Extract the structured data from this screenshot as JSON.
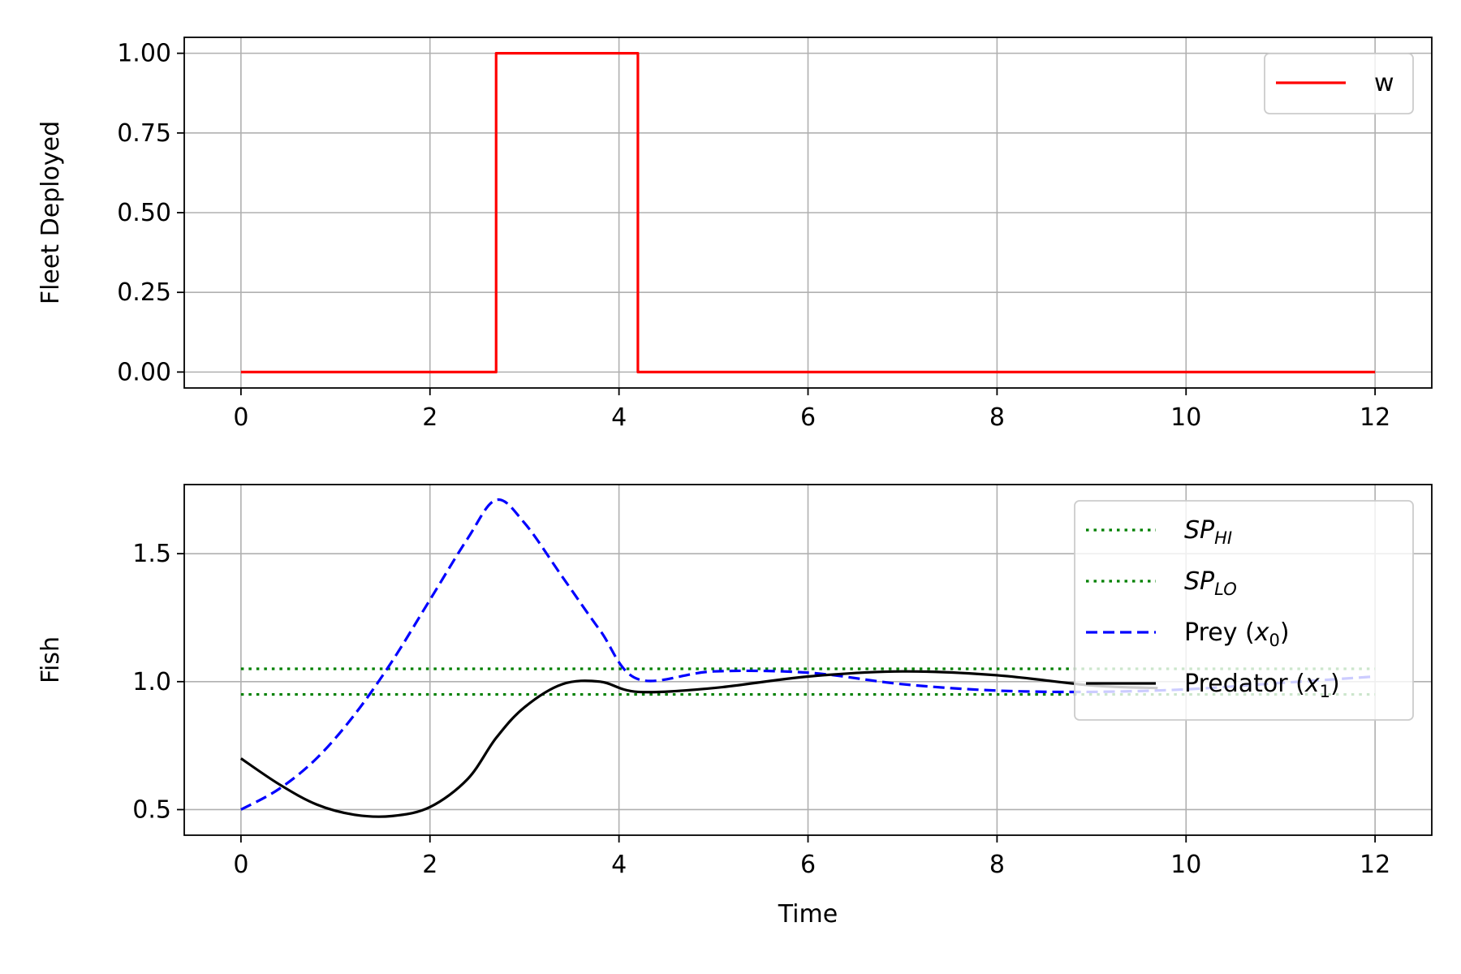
{
  "colors": {
    "w": "#ff0000",
    "sp": "#008000",
    "prey": "#0000ff",
    "predator": "#000000",
    "grid": "#b0b0b0"
  },
  "chart_data": [
    {
      "type": "line",
      "xlabel": "",
      "ylabel": "Fleet Deployed",
      "xlim": [
        -0.6,
        12.6
      ],
      "ylim": [
        -0.05,
        1.05
      ],
      "xticks": [
        0,
        2,
        4,
        6,
        8,
        10,
        12
      ],
      "xtick_labels": [
        "0",
        "2",
        "4",
        "6",
        "8",
        "10",
        "12"
      ],
      "yticks": [
        0,
        0.25,
        0.5,
        0.75,
        1.0
      ],
      "ytick_labels": [
        "0.00",
        "0.25",
        "0.50",
        "0.75",
        "1.00"
      ],
      "grid": true,
      "legend_position": "top-right",
      "series": [
        {
          "name": "w",
          "style": "solid",
          "color": "#ff0000",
          "x": [
            0,
            2.7,
            2.7,
            4.2,
            4.2,
            12
          ],
          "y": [
            0,
            0,
            1,
            1,
            0,
            0
          ]
        }
      ]
    },
    {
      "type": "line",
      "xlabel": "Time",
      "ylabel": "Fish",
      "xlim": [
        -0.6,
        12.6
      ],
      "ylim": [
        0.4,
        1.77
      ],
      "xticks": [
        0,
        2,
        4,
        6,
        8,
        10,
        12
      ],
      "xtick_labels": [
        "0",
        "2",
        "4",
        "6",
        "8",
        "10",
        "12"
      ],
      "yticks": [
        0.5,
        1.0,
        1.5
      ],
      "ytick_labels": [
        "0.5",
        "1.0",
        "1.5"
      ],
      "grid": true,
      "legend_position": "top-right",
      "series": [
        {
          "name": "SP",
          "name_sub": "HI",
          "style": "dotted",
          "color": "#008000",
          "x": [
            0,
            12
          ],
          "y": [
            1.05,
            1.05
          ]
        },
        {
          "name": "SP",
          "name_sub": "LO",
          "style": "dotted",
          "color": "#008000",
          "x": [
            0,
            12
          ],
          "y": [
            0.95,
            0.95
          ]
        },
        {
          "name": "Prey (",
          "name_math": "x",
          "name_sub": "0",
          "name_suffix": ")",
          "style": "dashed",
          "color": "#0000ff",
          "x": [
            0,
            0.4,
            0.8,
            1.2,
            1.6,
            2.0,
            2.4,
            2.7,
            3.0,
            3.4,
            3.8,
            4.2,
            5.0,
            6.0,
            7.0,
            8.0,
            9.0,
            10.0,
            11.0,
            12.0
          ],
          "y": [
            0.5,
            0.58,
            0.7,
            0.87,
            1.08,
            1.32,
            1.56,
            1.71,
            1.62,
            1.41,
            1.2,
            1.01,
            1.04,
            1.035,
            0.99,
            0.965,
            0.96,
            0.97,
            0.995,
            1.02
          ]
        },
        {
          "name": "Predator (",
          "name_math": "x",
          "name_sub": "1",
          "name_suffix": ")",
          "style": "solid",
          "color": "#000000",
          "x": [
            0,
            0.4,
            0.8,
            1.2,
            1.6,
            2.0,
            2.4,
            2.7,
            3.0,
            3.4,
            3.8,
            4.2,
            5.0,
            6.0,
            7.0,
            8.0,
            9.0,
            9.7
          ],
          "y": [
            0.7,
            0.6,
            0.52,
            0.48,
            0.475,
            0.51,
            0.62,
            0.78,
            0.9,
            0.99,
            1.0,
            0.96,
            0.975,
            1.02,
            1.04,
            1.025,
            0.985,
            0.975
          ]
        }
      ]
    }
  ]
}
